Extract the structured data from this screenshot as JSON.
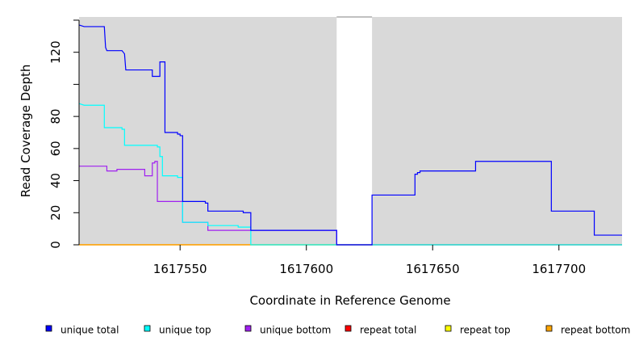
{
  "chart_data": {
    "type": "line",
    "step": true,
    "xlabel": "Coordinate in Reference Genome",
    "ylabel": "Read Coverage Depth",
    "xlim": [
      1617510,
      1617725
    ],
    "ylim": [
      0,
      142
    ],
    "x_ticks": [
      {
        "value": 1617550,
        "label": "1617550"
      },
      {
        "value": 1617600,
        "label": "1617600"
      },
      {
        "value": 1617650,
        "label": "1617650"
      },
      {
        "value": 1617700,
        "label": "1617700"
      }
    ],
    "y_ticks": [
      {
        "value": 0,
        "label": "0"
      },
      {
        "value": 20,
        "label": "20"
      },
      {
        "value": 40,
        "label": "40"
      },
      {
        "value": 60,
        "label": "60"
      },
      {
        "value": 80,
        "label": "80"
      },
      {
        "value": 100,
        "label": ""
      },
      {
        "value": 120,
        "label": "120"
      },
      {
        "value": 140,
        "label": ""
      }
    ],
    "shaded_regions": [
      {
        "x0": 1617510,
        "x1": 1617612
      },
      {
        "x0": 1617626,
        "x1": 1617725
      }
    ],
    "colors": {
      "background": "#ffffff",
      "region": "#d9d9d9",
      "gap_line": "#808080"
    },
    "series": [
      {
        "name": "unique total",
        "color": "#0000ff",
        "points": [
          [
            1617510,
            137
          ],
          [
            1617512,
            136
          ],
          [
            1617520,
            136
          ],
          [
            1617520.5,
            123
          ],
          [
            1617521,
            121
          ],
          [
            1617527,
            121
          ],
          [
            1617527.5,
            120
          ],
          [
            1617528,
            119
          ],
          [
            1617528.5,
            109
          ],
          [
            1617539,
            109
          ],
          [
            1617539,
            105
          ],
          [
            1617542,
            105
          ],
          [
            1617542,
            114
          ],
          [
            1617544,
            114
          ],
          [
            1617544,
            70
          ],
          [
            1617549,
            70
          ],
          [
            1617549,
            69
          ],
          [
            1617550,
            69
          ],
          [
            1617550,
            68
          ],
          [
            1617551,
            68
          ],
          [
            1617551,
            27
          ],
          [
            1617560,
            27
          ],
          [
            1617560,
            26
          ],
          [
            1617561,
            26
          ],
          [
            1617561,
            21
          ],
          [
            1617575,
            21
          ],
          [
            1617575,
            20
          ],
          [
            1617578,
            20
          ],
          [
            1617578,
            9
          ],
          [
            1617612,
            9
          ],
          [
            1617612,
            0
          ],
          [
            1617626,
            0
          ],
          [
            1617626,
            31
          ],
          [
            1617643,
            31
          ],
          [
            1617643,
            44
          ],
          [
            1617644,
            44
          ],
          [
            1617644,
            45
          ],
          [
            1617645,
            45
          ],
          [
            1617645,
            46
          ],
          [
            1617667,
            46
          ],
          [
            1617667,
            52
          ],
          [
            1617697,
            52
          ],
          [
            1617697,
            21
          ],
          [
            1617714,
            21
          ],
          [
            1617714,
            6
          ],
          [
            1617725,
            6
          ]
        ]
      },
      {
        "name": "unique top",
        "color": "#00ffff",
        "points": [
          [
            1617510,
            88
          ],
          [
            1617512,
            87
          ],
          [
            1617520,
            87
          ],
          [
            1617520,
            73
          ],
          [
            1617527,
            73
          ],
          [
            1617527,
            72
          ],
          [
            1617528,
            72
          ],
          [
            1617528,
            62
          ],
          [
            1617541,
            62
          ],
          [
            1617541,
            61
          ],
          [
            1617542,
            61
          ],
          [
            1617542,
            55
          ],
          [
            1617543,
            55
          ],
          [
            1617543,
            43
          ],
          [
            1617549,
            43
          ],
          [
            1617549,
            42
          ],
          [
            1617551,
            42
          ],
          [
            1617551,
            14
          ],
          [
            1617561,
            14
          ],
          [
            1617561,
            12
          ],
          [
            1617573,
            12
          ],
          [
            1617573,
            11
          ],
          [
            1617578,
            11
          ],
          [
            1617578,
            0
          ],
          [
            1617725,
            0
          ]
        ]
      },
      {
        "name": "unique bottom",
        "color": "#a020f0",
        "points": [
          [
            1617510,
            49
          ],
          [
            1617521,
            49
          ],
          [
            1617521,
            46
          ],
          [
            1617525,
            46
          ],
          [
            1617525,
            47
          ],
          [
            1617536,
            47
          ],
          [
            1617536,
            43
          ],
          [
            1617539,
            43
          ],
          [
            1617539,
            51
          ],
          [
            1617540,
            51
          ],
          [
            1617540,
            52
          ],
          [
            1617541,
            52
          ],
          [
            1617541,
            27
          ],
          [
            1617551,
            27
          ],
          [
            1617551,
            14
          ],
          [
            1617561,
            14
          ],
          [
            1617561,
            9
          ],
          [
            1617612,
            9
          ],
          [
            1617612,
            0
          ],
          [
            1617725,
            0
          ]
        ]
      },
      {
        "name": "repeat total",
        "color": "#ff0000",
        "points": [
          [
            1617510,
            0
          ],
          [
            1617725,
            0
          ]
        ]
      },
      {
        "name": "repeat top",
        "color": "#ffff00",
        "points": [
          [
            1617510,
            0
          ],
          [
            1617725,
            0
          ]
        ]
      },
      {
        "name": "repeat bottom",
        "color": "#ffa500",
        "points": [
          [
            1617510,
            0
          ],
          [
            1617725,
            0
          ]
        ]
      }
    ],
    "legend": {
      "placement": "bottom",
      "entries": [
        {
          "name": "unique total",
          "color": "#0000ff"
        },
        {
          "name": "unique top",
          "color": "#00ffff"
        },
        {
          "name": "unique bottom",
          "color": "#a020f0"
        },
        {
          "name": "repeat total",
          "color": "#ff0000"
        },
        {
          "name": "repeat top",
          "color": "#ffff00"
        },
        {
          "name": "repeat bottom",
          "color": "#ffa500"
        }
      ]
    }
  }
}
